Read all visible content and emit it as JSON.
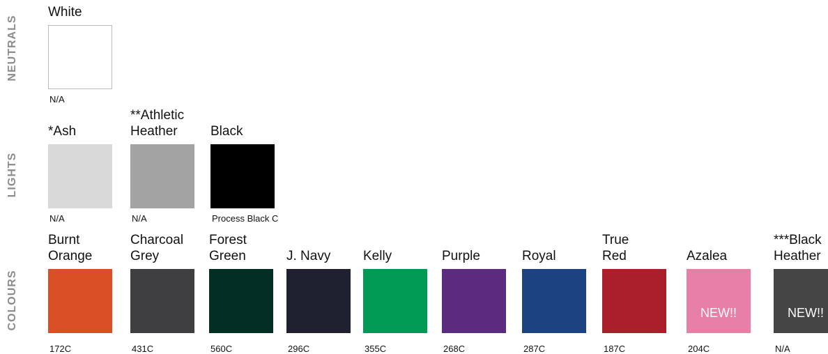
{
  "sections": [
    {
      "label": "NEUTRALS",
      "swatches": [
        {
          "name": [
            "White"
          ],
          "color": "#ffffff",
          "code": "N/A"
        }
      ]
    },
    {
      "label": "LIGHTS",
      "swatches": [
        {
          "name": [
            "*Ash"
          ],
          "color": "#d9d9da",
          "code": "N/A"
        },
        {
          "name": [
            "**Athletic",
            "Heather"
          ],
          "color": "#a3a3a3",
          "code": "N/A"
        },
        {
          "name": [
            "Black"
          ],
          "color": "#000000",
          "code": "Process Black C"
        }
      ]
    },
    {
      "label": "COLOURS",
      "swatches": [
        {
          "name": [
            "Burnt",
            "Orange"
          ],
          "color": "#d94f26",
          "code": "172C"
        },
        {
          "name": [
            "Charcoal",
            "Grey"
          ],
          "color": "#3f3f42",
          "code": "431C"
        },
        {
          "name": [
            "Forest",
            "Green"
          ],
          "color": "#032e23",
          "code": "560C"
        },
        {
          "name": [
            "J. Navy"
          ],
          "color": "#1f2130",
          "code": "296C"
        },
        {
          "name": [
            "Kelly"
          ],
          "color": "#019a54",
          "code": "355C"
        },
        {
          "name": [
            "Purple"
          ],
          "color": "#5c2a7e",
          "code": "268C"
        },
        {
          "name": [
            "Royal"
          ],
          "color": "#1d4281",
          "code": "287C"
        },
        {
          "name": [
            "True",
            "Red"
          ],
          "color": "#ab1f2b",
          "code": "187C"
        },
        {
          "name": [
            "Azalea"
          ],
          "color": "#e77fa6",
          "code": "204C",
          "badge": "NEW!!"
        },
        {
          "name": [
            "***Black",
            "Heather"
          ],
          "color": "#454545",
          "code": "N/A",
          "badge": "NEW!!"
        }
      ]
    }
  ]
}
